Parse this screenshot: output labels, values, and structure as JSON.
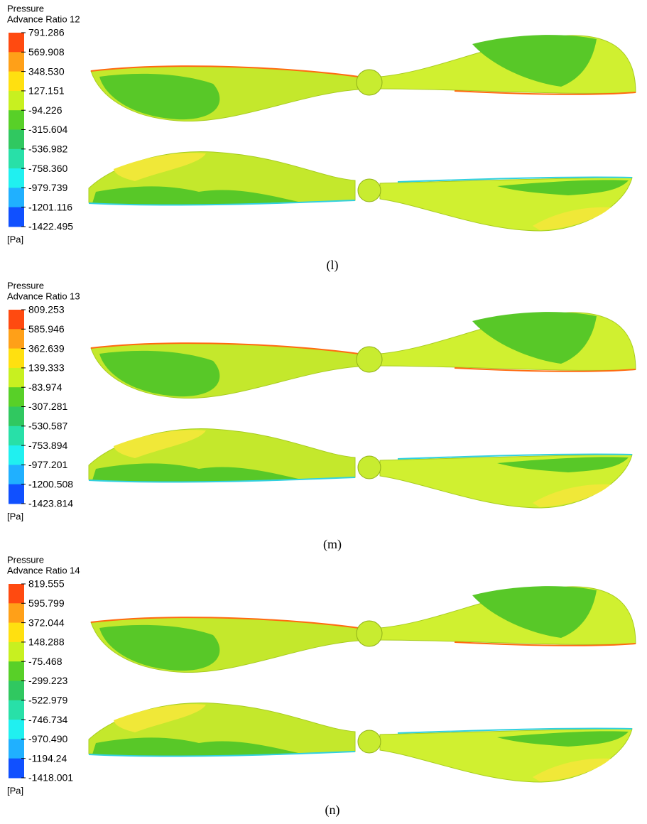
{
  "panels": [
    {
      "title": "Pressure",
      "subtitle": "Advance Ratio 12",
      "levels": [
        "791.286",
        "569.908",
        "348.530",
        "127.151",
        "-94.226",
        "-315.604",
        "-536.982",
        "-758.360",
        "-979.739",
        "-1201.116",
        "-1422.495"
      ],
      "unit": "[Pa]",
      "caption": "(l)"
    },
    {
      "title": "Pressure",
      "subtitle": "Advance Ratio 13",
      "levels": [
        "809.253",
        "585.946",
        "362.639",
        "139.333",
        "-83.974",
        "-307.281",
        "-530.587",
        "-753.894",
        "-977.201",
        "-1200.508",
        "-1423.814"
      ],
      "unit": "[Pa]",
      "caption": "(m)"
    },
    {
      "title": "Pressure",
      "subtitle": "Advance Ratio 14",
      "levels": [
        "819.555",
        "595.799",
        "372.044",
        "148.288",
        "-75.468",
        "-299.223",
        "-522.979",
        "-746.734",
        "-970.490",
        "-1194.24",
        "-1418.001"
      ],
      "unit": "[Pa]",
      "caption": "(n)"
    }
  ]
}
